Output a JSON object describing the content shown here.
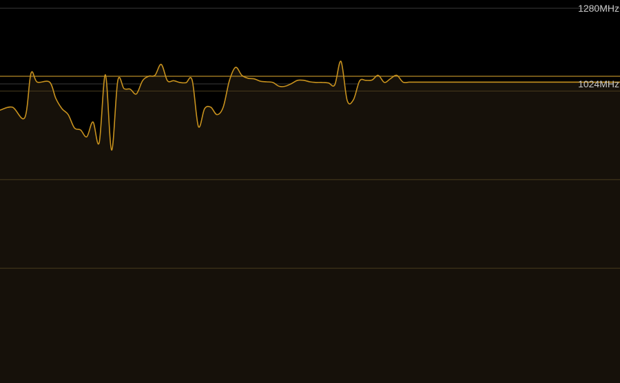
{
  "chart_data": {
    "type": "area",
    "title": "",
    "xlabel": "",
    "ylabel": "",
    "ylim": [
      0,
      1400
    ],
    "tick_labels": [
      {
        "value": 1280,
        "label": "1280MHz"
      },
      {
        "value": 1024,
        "label": "1024MHz"
      }
    ],
    "reference_line": {
      "value": 1050
    },
    "band_gridlines": [
      1000,
      700,
      400
    ],
    "grid": true,
    "colors": {
      "line": "#c8921e",
      "fill": "#16110a",
      "grid": "#3a3a3a",
      "band_grid": "#4a3d1e",
      "reference": "#9a7420",
      "tick_text": "#c9c9c9"
    },
    "series": [
      {
        "x": [
          0,
          2,
          4,
          5,
          6,
          8,
          9,
          10,
          11,
          12,
          13,
          14,
          15,
          16,
          17,
          18,
          19,
          20,
          21,
          22,
          23,
          24,
          25,
          26,
          27,
          28,
          29,
          30,
          31,
          32,
          33,
          34,
          35,
          36,
          37,
          38,
          39,
          40,
          41,
          42,
          43,
          44,
          45,
          46,
          47,
          48,
          49,
          50,
          51,
          52,
          53,
          54,
          55,
          56,
          57,
          58,
          59,
          60,
          61,
          62,
          63,
          64,
          65,
          66,
          67,
          68,
          69,
          70,
          71,
          72,
          73,
          74,
          75,
          76,
          77,
          78,
          79,
          80,
          81,
          82,
          83,
          84,
          85,
          86,
          87,
          88,
          89,
          90,
          91,
          92,
          93,
          94,
          95,
          96,
          97,
          98,
          99,
          100
        ],
        "values": [
          935,
          945,
          910,
          1060,
          1030,
          1030,
          975,
          940,
          920,
          875,
          868,
          845,
          895,
          825,
          1055,
          800,
          1035,
          1008,
          1006,
          990,
          1035,
          1050,
          1053,
          1090,
          1035,
          1035,
          1029,
          1028,
          1036,
          880,
          940,
          945,
          920,
          945,
          1035,
          1080,
          1053,
          1043,
          1041,
          1033,
          1031,
          1029,
          1016,
          1016,
          1025,
          1036,
          1036,
          1031,
          1029,
          1029,
          1027,
          1021,
          1100,
          968,
          970,
          1034,
          1036,
          1037,
          1053,
          1029,
          1042,
          1053,
          1030,
          1030,
          1030,
          1030,
          1030,
          1030,
          1030,
          1030,
          1030,
          1030,
          1030,
          1030,
          1030,
          1030,
          1030,
          1030,
          1030,
          1030,
          1030,
          1030,
          1030,
          1030,
          1030,
          1030,
          1030,
          1030,
          1030,
          1030,
          1030,
          1030,
          1030,
          1030,
          1030,
          1030,
          1030,
          1030
        ]
      }
    ]
  }
}
